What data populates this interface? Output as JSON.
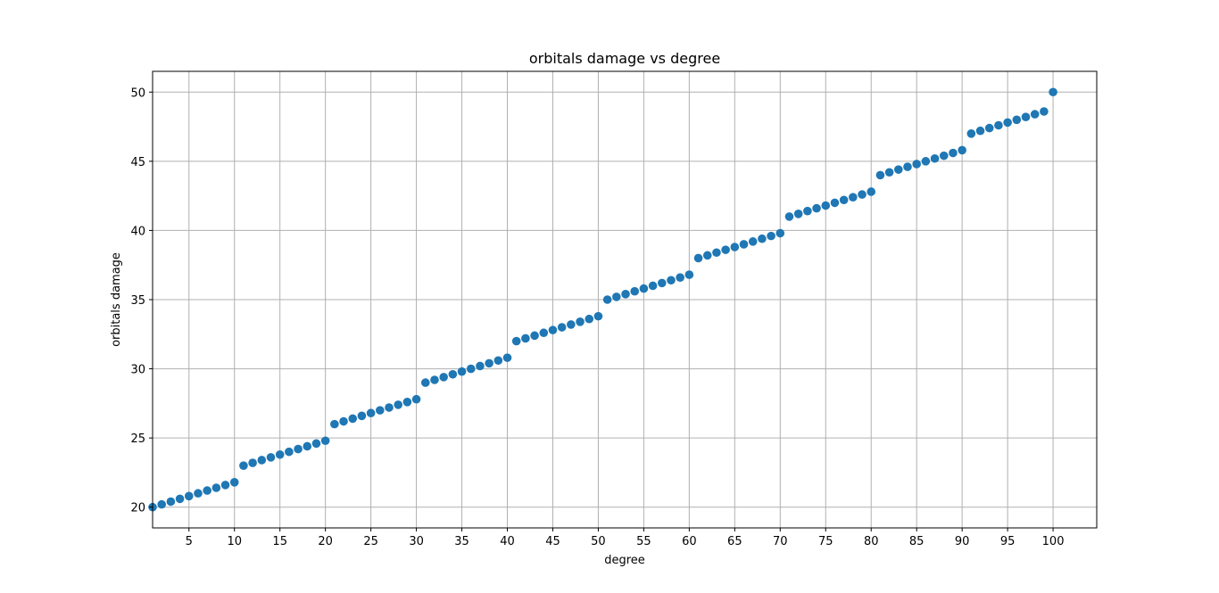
{
  "chart_data": {
    "type": "scatter",
    "title": "orbitals damage vs degree",
    "xlabel": "degree",
    "ylabel": "orbitals damage",
    "xlim": [
      1,
      104.8
    ],
    "ylim": [
      18.5,
      51.5
    ],
    "xticks": [
      5,
      10,
      15,
      20,
      25,
      30,
      35,
      40,
      45,
      50,
      55,
      60,
      65,
      70,
      75,
      80,
      85,
      90,
      95,
      100
    ],
    "yticks": [
      20,
      25,
      30,
      35,
      40,
      45,
      50
    ],
    "grid": true,
    "marker_color": "#1f77b4",
    "series": [
      {
        "x": [
          1,
          2,
          3,
          4,
          5,
          6,
          7,
          8,
          9,
          10,
          11,
          12,
          13,
          14,
          15,
          16,
          17,
          18,
          19,
          20,
          21,
          22,
          23,
          24,
          25,
          26,
          27,
          28,
          29,
          30,
          31,
          32,
          33,
          34,
          35,
          36,
          37,
          38,
          39,
          40,
          41,
          42,
          43,
          44,
          45,
          46,
          47,
          48,
          49,
          50,
          51,
          52,
          53,
          54,
          55,
          56,
          57,
          58,
          59,
          60,
          61,
          62,
          63,
          64,
          65,
          66,
          67,
          68,
          69,
          70,
          71,
          72,
          73,
          74,
          75,
          76,
          77,
          78,
          79,
          80,
          81,
          82,
          83,
          84,
          85,
          86,
          87,
          88,
          89,
          90,
          91,
          92,
          93,
          94,
          95,
          96,
          97,
          98,
          99,
          100
        ],
        "y": [
          20,
          20.2,
          20.4,
          20.6,
          20.8,
          21,
          21.2,
          21.4,
          21.6,
          21.8,
          23,
          23.2,
          23.4,
          23.6,
          23.8,
          24,
          24.2,
          24.4,
          24.6,
          24.8,
          26,
          26.2,
          26.4,
          26.6,
          26.8,
          27,
          27.2,
          27.4,
          27.6,
          27.8,
          29,
          29.2,
          29.4,
          29.6,
          29.8,
          30,
          30.2,
          30.4,
          30.6,
          30.8,
          32,
          32.2,
          32.4,
          32.6,
          32.8,
          33,
          33.2,
          33.4,
          33.6,
          33.8,
          35,
          35.2,
          35.4,
          35.6,
          35.8,
          36,
          36.2,
          36.4,
          36.6,
          36.8,
          38,
          38.2,
          38.4,
          38.6,
          38.8,
          39,
          39.2,
          39.4,
          39.6,
          39.8,
          41,
          41.2,
          41.4,
          41.6,
          41.8,
          42,
          42.2,
          42.4,
          42.6,
          42.8,
          44,
          44.2,
          44.4,
          44.6,
          44.8,
          45,
          45.2,
          45.4,
          45.6,
          45.8,
          47,
          47.2,
          47.4,
          47.6,
          47.8,
          48,
          48.2,
          48.4,
          48.6,
          50
        ]
      }
    ]
  }
}
